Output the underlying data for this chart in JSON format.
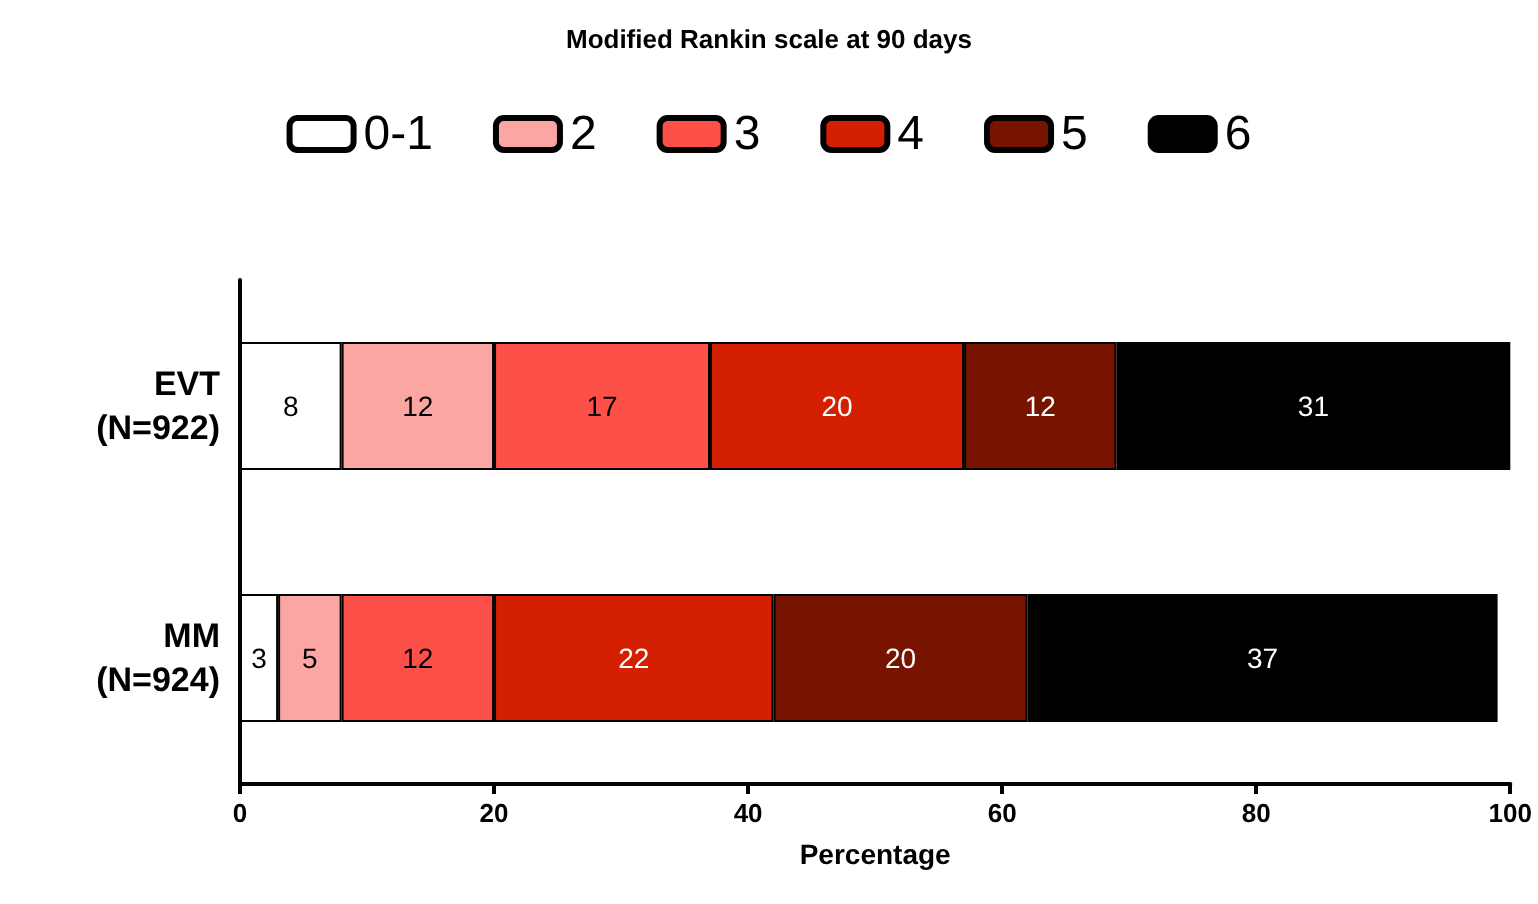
{
  "chart_data": {
    "type": "bar",
    "orientation": "horizontal",
    "stacked": true,
    "title": "Modified Rankin scale at 90 days",
    "xlabel": "Percentage",
    "categories": [
      "EVT\n(N=922)",
      "MM\n(N=924)"
    ],
    "series": [
      {
        "name": "0-1",
        "color": "#ffffff",
        "values": [
          8,
          3
        ]
      },
      {
        "name": "2",
        "color": "#fca6a3",
        "values": [
          12,
          5
        ]
      },
      {
        "name": "3",
        "color": "#fc5048",
        "values": [
          17,
          12
        ]
      },
      {
        "name": "4",
        "color": "#d42000",
        "values": [
          20,
          22
        ]
      },
      {
        "name": "5",
        "color": "#771400",
        "values": [
          12,
          20
        ]
      },
      {
        "name": "6",
        "color": "#000000",
        "values": [
          31,
          37
        ]
      }
    ],
    "xlim": [
      0,
      100
    ],
    "xticks": [
      0,
      20,
      40,
      60,
      80,
      100
    ],
    "grid": false,
    "legend": "top",
    "data_labels": true
  }
}
